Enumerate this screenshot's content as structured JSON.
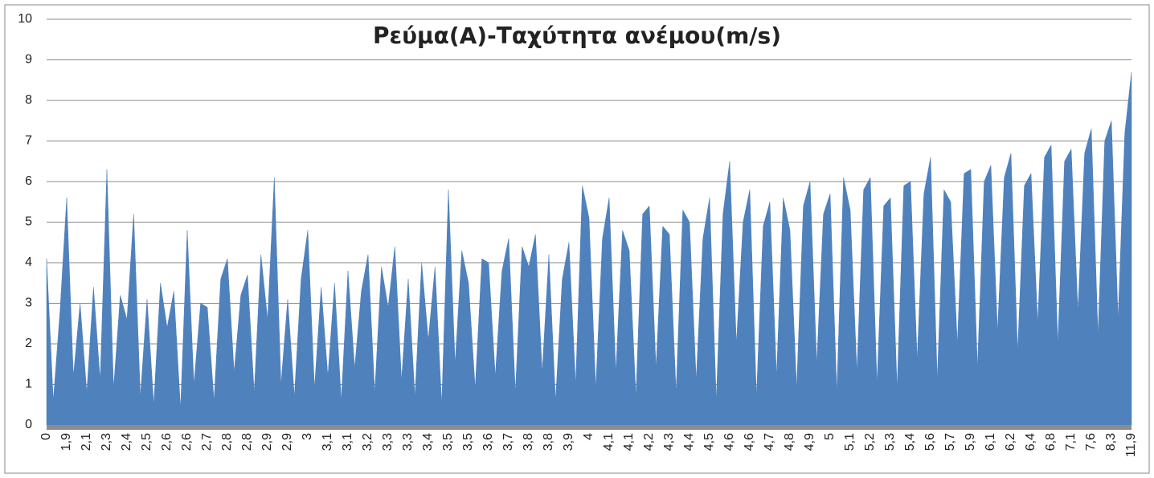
{
  "chart_data": {
    "type": "area",
    "title": "Ρεύμα(A)-Ταχύτητα ανέμου(m/s)",
    "color": "#4f81bd",
    "grid": true,
    "ylim": [
      0,
      10
    ],
    "yticks": [
      0,
      1,
      2,
      3,
      4,
      5,
      6,
      7,
      8,
      9,
      10
    ],
    "categories": [
      "0",
      null,
      null,
      "1,9",
      null,
      null,
      "2,1",
      null,
      null,
      "2,3",
      null,
      null,
      "2,4",
      null,
      null,
      "2,5",
      null,
      null,
      "2,6",
      null,
      null,
      "2,6",
      null,
      null,
      "2,7",
      null,
      null,
      "2,8",
      null,
      null,
      "2,8",
      null,
      null,
      "2,9",
      null,
      null,
      "2,9",
      null,
      null,
      "3",
      null,
      null,
      "3,1",
      null,
      null,
      "3,1",
      null,
      null,
      "3,2",
      null,
      null,
      "3,3",
      null,
      null,
      "3,3",
      null,
      null,
      "3,4",
      null,
      null,
      "3,5",
      null,
      null,
      "3,5",
      null,
      null,
      "3,6",
      null,
      null,
      "3,7",
      null,
      null,
      "3,8",
      null,
      null,
      "3,8",
      null,
      null,
      "3,9",
      null,
      null,
      "4",
      null,
      null,
      "4,1",
      null,
      null,
      "4,1",
      null,
      null,
      "4,2",
      null,
      null,
      "4,3",
      null,
      null,
      "4,4",
      null,
      null,
      "4,5",
      null,
      null,
      "4,6",
      null,
      null,
      "4,6",
      null,
      null,
      "4,7",
      null,
      null,
      "4,8",
      null,
      null,
      "4,9",
      null,
      null,
      "5",
      null,
      null,
      "5,1",
      null,
      null,
      "5,2",
      null,
      null,
      "5,3",
      null,
      null,
      "5,4",
      null,
      null,
      "5,6",
      null,
      null,
      "5,7",
      null,
      null,
      "5,9",
      null,
      null,
      "6,1",
      null,
      null,
      "6,2",
      null,
      null,
      "6,4",
      null,
      null,
      "6,8",
      null,
      null,
      "7,1",
      null,
      null,
      "7,6",
      null,
      null,
      "8,3",
      null,
      null,
      "11,9"
    ],
    "values": [
      4.1,
      0.6,
      2.8,
      5.6,
      1.2,
      3.0,
      0.8,
      3.4,
      1.1,
      6.3,
      0.9,
      3.2,
      2.6,
      5.2,
      0.7,
      3.1,
      0.5,
      3.5,
      2.4,
      3.3,
      0.4,
      4.8,
      1.0,
      3.0,
      2.9,
      0.6,
      3.6,
      4.1,
      1.3,
      3.2,
      3.7,
      0.8,
      4.2,
      2.6,
      6.1,
      1.0,
      3.1,
      0.7,
      3.6,
      4.8,
      0.9,
      3.4,
      1.2,
      3.5,
      0.6,
      3.8,
      1.4,
      3.3,
      4.2,
      0.8,
      3.9,
      2.9,
      4.4,
      1.1,
      3.6,
      0.7,
      4.0,
      2.1,
      3.9,
      0.5,
      5.8,
      1.5,
      4.3,
      3.5,
      0.9,
      4.1,
      4.0,
      1.2,
      3.8,
      4.6,
      0.8,
      4.4,
      3.9,
      4.7,
      1.3,
      4.2,
      0.6,
      3.6,
      4.5,
      1.0,
      5.9,
      5.1,
      0.9,
      4.6,
      5.6,
      1.3,
      4.8,
      4.3,
      0.7,
      5.2,
      5.4,
      1.4,
      4.9,
      4.7,
      0.8,
      5.3,
      5.0,
      1.1,
      4.6,
      5.6,
      0.6,
      5.2,
      6.5,
      2.0,
      5.0,
      5.8,
      0.7,
      4.9,
      5.5,
      1.2,
      5.6,
      4.8,
      0.9,
      5.4,
      6.0,
      1.5,
      5.2,
      5.7,
      0.8,
      6.1,
      5.3,
      1.3,
      5.8,
      6.1,
      1.0,
      5.4,
      5.6,
      0.9,
      5.9,
      6.0,
      1.6,
      5.7,
      6.6,
      1.1,
      5.8,
      5.5,
      2.0,
      6.2,
      6.3,
      1.4,
      6.0,
      6.4,
      2.3,
      6.1,
      6.7,
      1.8,
      5.9,
      6.2,
      2.5,
      6.6,
      6.9,
      2.0,
      6.5,
      6.8,
      2.8,
      6.7,
      7.3,
      2.2,
      7.0,
      7.5,
      2.6,
      7.2,
      8.7
    ]
  }
}
